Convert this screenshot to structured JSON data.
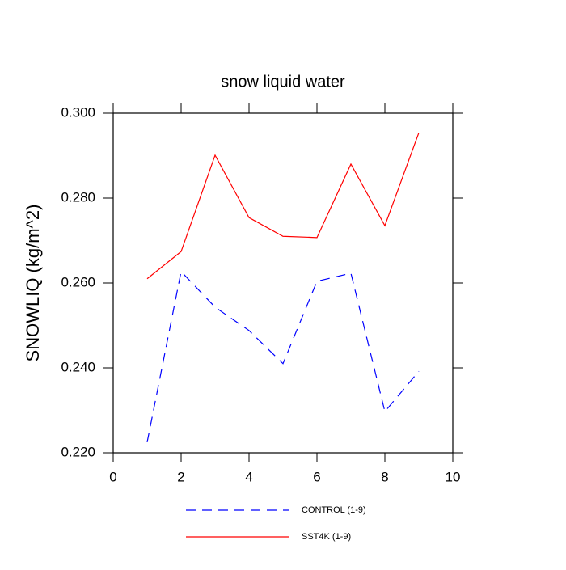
{
  "chart_data": {
    "type": "line",
    "title": "snow liquid water",
    "y_label": "SNOWLIQ  (kg/m^2)",
    "x": [
      1,
      2,
      3,
      4,
      5,
      6,
      7,
      8,
      9
    ],
    "series": [
      {
        "name": "CONTROL (1-9)",
        "color": "#0000ff",
        "dash": true,
        "values": [
          0.2225,
          0.2627,
          0.2543,
          0.2488,
          0.241,
          0.2604,
          0.2623,
          0.2297,
          0.2392
        ]
      },
      {
        "name": "SST4K (1-9)",
        "color": "#ff0000",
        "dash": false,
        "values": [
          0.261,
          0.2674,
          0.2901,
          0.2754,
          0.271,
          0.2707,
          0.288,
          0.2735,
          0.2954
        ]
      }
    ],
    "xlim": [
      0,
      10
    ],
    "xticks": [
      0,
      2,
      4,
      6,
      8,
      10
    ],
    "ylim": [
      0.22,
      0.3
    ],
    "yticks": [
      {
        "value": 0.22,
        "label": "0.220"
      },
      {
        "value": 0.24,
        "label": "0.240"
      },
      {
        "value": 0.26,
        "label": "0.260"
      },
      {
        "value": 0.28,
        "label": "0.280"
      },
      {
        "value": 0.3,
        "label": "0.300"
      }
    ]
  }
}
